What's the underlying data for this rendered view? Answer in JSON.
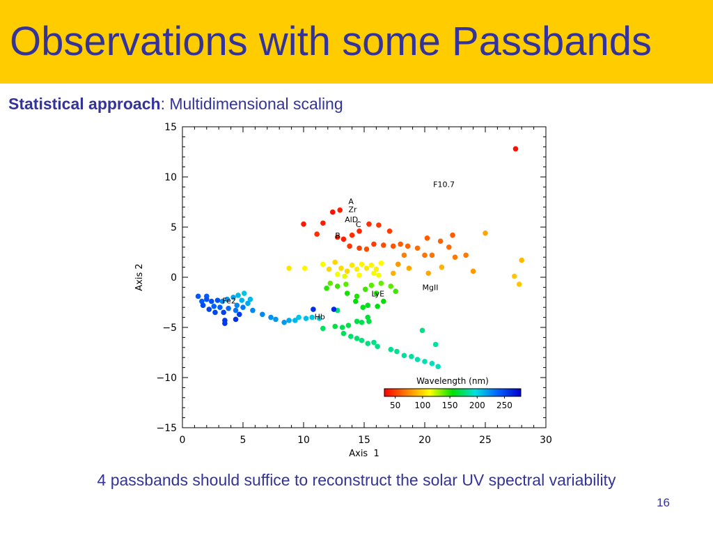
{
  "slide": {
    "title": "Observations with some Passbands",
    "subtitle_bold": "Statistical approach",
    "subtitle_rest": ": Multidimensional scaling",
    "footer": "4 passbands should suffice to reconstruct the solar UV spectral variability",
    "page_number": "16"
  },
  "colors": {
    "title_bar": "#ffcc00",
    "text": "#333399"
  },
  "chart_data": {
    "type": "scatter",
    "xlabel": "Axis  1",
    "ylabel": "Axis 2",
    "xlim": [
      0,
      30
    ],
    "ylim": [
      -15,
      15
    ],
    "xticks": [
      0,
      5,
      10,
      15,
      20,
      25,
      30
    ],
    "yticks": [
      -15,
      -10,
      -5,
      0,
      5,
      10,
      15
    ],
    "grid": false,
    "colorbar": {
      "label": "Wavelength (nm)",
      "ticks": [
        50,
        100,
        150,
        200,
        250
      ],
      "range": [
        30,
        280
      ],
      "colormap": [
        "#ff0000",
        "#ff8000",
        "#ffff00",
        "#00e000",
        "#00e0e0",
        "#0060ff",
        "#0000cc"
      ]
    },
    "annotations": [
      {
        "text": "F10.7",
        "x": 20.7,
        "y": 9.0
      },
      {
        "text": "A",
        "x": 13.7,
        "y": 7.3
      },
      {
        "text": "Zr",
        "x": 13.7,
        "y": 6.5
      },
      {
        "text": "AlD",
        "x": 13.4,
        "y": 5.5
      },
      {
        "text": "C",
        "x": 14.3,
        "y": 5.0
      },
      {
        "text": "B",
        "x": 12.6,
        "y": 3.9
      },
      {
        "text": "MgII",
        "x": 19.8,
        "y": -1.3
      },
      {
        "text": "LyE",
        "x": 15.6,
        "y": -1.9
      },
      {
        "text": "Hb",
        "x": 10.9,
        "y": -4.2
      },
      {
        "text": "Fe2",
        "x": 3.3,
        "y": -2.6
      }
    ],
    "points": [
      {
        "x": 27.5,
        "y": 12.8,
        "w": 35
      },
      {
        "x": 12.4,
        "y": 6.5,
        "w": 35
      },
      {
        "x": 13.0,
        "y": 6.7,
        "w": 40
      },
      {
        "x": 10.0,
        "y": 5.3,
        "w": 38
      },
      {
        "x": 11.6,
        "y": 5.4,
        "w": 40
      },
      {
        "x": 11.1,
        "y": 4.3,
        "w": 45
      },
      {
        "x": 12.8,
        "y": 4.0,
        "w": 42
      },
      {
        "x": 13.3,
        "y": 3.8,
        "w": 40
      },
      {
        "x": 14.0,
        "y": 4.2,
        "w": 45
      },
      {
        "x": 14.6,
        "y": 4.6,
        "w": 42
      },
      {
        "x": 15.4,
        "y": 5.3,
        "w": 45
      },
      {
        "x": 16.2,
        "y": 5.2,
        "w": 48
      },
      {
        "x": 17.1,
        "y": 4.6,
        "w": 50
      },
      {
        "x": 13.8,
        "y": 3.1,
        "w": 48
      },
      {
        "x": 14.6,
        "y": 2.9,
        "w": 50
      },
      {
        "x": 15.2,
        "y": 2.8,
        "w": 55
      },
      {
        "x": 15.8,
        "y": 3.3,
        "w": 50
      },
      {
        "x": 16.6,
        "y": 3.2,
        "w": 55
      },
      {
        "x": 17.4,
        "y": 3.1,
        "w": 58
      },
      {
        "x": 18.0,
        "y": 3.3,
        "w": 60
      },
      {
        "x": 18.6,
        "y": 3.1,
        "w": 62
      },
      {
        "x": 19.4,
        "y": 2.9,
        "w": 65
      },
      {
        "x": 20.2,
        "y": 3.9,
        "w": 60
      },
      {
        "x": 21.3,
        "y": 3.6,
        "w": 62
      },
      {
        "x": 22.3,
        "y": 4.2,
        "w": 60
      },
      {
        "x": 22.0,
        "y": 3.0,
        "w": 65
      },
      {
        "x": 22.5,
        "y": 2.0,
        "w": 70
      },
      {
        "x": 23.4,
        "y": 2.2,
        "w": 70
      },
      {
        "x": 20.0,
        "y": 2.2,
        "w": 68
      },
      {
        "x": 20.6,
        "y": 2.2,
        "w": 68
      },
      {
        "x": 18.3,
        "y": 2.2,
        "w": 72
      },
      {
        "x": 25.0,
        "y": 4.4,
        "w": 85
      },
      {
        "x": 28.0,
        "y": 1.7,
        "w": 90
      },
      {
        "x": 27.4,
        "y": 0.1,
        "w": 95
      },
      {
        "x": 27.8,
        "y": -0.7,
        "w": 95
      },
      {
        "x": 24.0,
        "y": 0.6,
        "w": 80
      },
      {
        "x": 21.4,
        "y": 1.0,
        "w": 88
      },
      {
        "x": 20.3,
        "y": 0.4,
        "w": 85
      },
      {
        "x": 18.7,
        "y": 0.9,
        "w": 85
      },
      {
        "x": 17.8,
        "y": 1.3,
        "w": 80
      },
      {
        "x": 17.4,
        "y": 0.4,
        "w": 88
      },
      {
        "x": 12.1,
        "y": 0.8,
        "w": 100
      },
      {
        "x": 12.6,
        "y": 1.5,
        "w": 100
      },
      {
        "x": 13.1,
        "y": 0.9,
        "w": 102
      },
      {
        "x": 13.6,
        "y": 0.6,
        "w": 100
      },
      {
        "x": 14.0,
        "y": 1.2,
        "w": 105
      },
      {
        "x": 14.4,
        "y": 0.8,
        "w": 108
      },
      {
        "x": 14.8,
        "y": 1.3,
        "w": 110
      },
      {
        "x": 15.2,
        "y": 0.9,
        "w": 105
      },
      {
        "x": 15.6,
        "y": 1.2,
        "w": 110
      },
      {
        "x": 16.0,
        "y": 0.8,
        "w": 108
      },
      {
        "x": 16.4,
        "y": 1.4,
        "w": 112
      },
      {
        "x": 15.8,
        "y": 0.4,
        "w": 115
      },
      {
        "x": 16.2,
        "y": 0.2,
        "w": 115
      },
      {
        "x": 14.6,
        "y": 0.2,
        "w": 112
      },
      {
        "x": 13.4,
        "y": 0.1,
        "w": 118
      },
      {
        "x": 12.8,
        "y": 0.3,
        "w": 115
      },
      {
        "x": 10.1,
        "y": 0.9,
        "w": 110
      },
      {
        "x": 8.8,
        "y": 0.9,
        "w": 105
      },
      {
        "x": 11.6,
        "y": 1.3,
        "w": 115
      },
      {
        "x": 12.2,
        "y": -0.6,
        "w": 140
      },
      {
        "x": 12.8,
        "y": -0.9,
        "w": 145
      },
      {
        "x": 13.5,
        "y": -0.7,
        "w": 140
      },
      {
        "x": 11.9,
        "y": -1.1,
        "w": 148
      },
      {
        "x": 15.1,
        "y": -1.2,
        "w": 145
      },
      {
        "x": 15.6,
        "y": -0.8,
        "w": 140
      },
      {
        "x": 16.4,
        "y": -0.6,
        "w": 138
      },
      {
        "x": 17.2,
        "y": -0.9,
        "w": 140
      },
      {
        "x": 17.6,
        "y": -1.4,
        "w": 145
      },
      {
        "x": 16.0,
        "y": -1.6,
        "w": 150
      },
      {
        "x": 16.6,
        "y": -2.4,
        "w": 155
      },
      {
        "x": 16.1,
        "y": -2.9,
        "w": 158
      },
      {
        "x": 14.3,
        "y": -2.4,
        "w": 155
      },
      {
        "x": 15.3,
        "y": -2.8,
        "w": 160
      },
      {
        "x": 13.6,
        "y": -1.6,
        "w": 152
      },
      {
        "x": 14.4,
        "y": -1.9,
        "w": 150
      },
      {
        "x": 14.9,
        "y": -3.0,
        "w": 160
      },
      {
        "x": 15.3,
        "y": -4.0,
        "w": 165
      },
      {
        "x": 15.4,
        "y": -4.4,
        "w": 168
      },
      {
        "x": 14.8,
        "y": -4.5,
        "w": 170
      },
      {
        "x": 14.4,
        "y": -4.4,
        "w": 168
      },
      {
        "x": 13.7,
        "y": -4.8,
        "w": 168
      },
      {
        "x": 13.2,
        "y": -5.0,
        "w": 170
      },
      {
        "x": 12.6,
        "y": -4.9,
        "w": 168
      },
      {
        "x": 11.6,
        "y": -5.1,
        "w": 172
      },
      {
        "x": 12.8,
        "y": -3.3,
        "w": 175
      },
      {
        "x": 13.3,
        "y": -5.6,
        "w": 172
      },
      {
        "x": 13.9,
        "y": -5.9,
        "w": 175
      },
      {
        "x": 14.4,
        "y": -6.1,
        "w": 175
      },
      {
        "x": 14.8,
        "y": -6.3,
        "w": 178
      },
      {
        "x": 15.3,
        "y": -6.6,
        "w": 178
      },
      {
        "x": 15.8,
        "y": -6.5,
        "w": 180
      },
      {
        "x": 16.1,
        "y": -6.9,
        "w": 180
      },
      {
        "x": 17.2,
        "y": -7.2,
        "w": 182
      },
      {
        "x": 17.7,
        "y": -7.4,
        "w": 182
      },
      {
        "x": 18.3,
        "y": -7.8,
        "w": 185
      },
      {
        "x": 18.9,
        "y": -7.9,
        "w": 185
      },
      {
        "x": 19.4,
        "y": -8.2,
        "w": 188
      },
      {
        "x": 20.0,
        "y": -8.4,
        "w": 188
      },
      {
        "x": 20.6,
        "y": -8.6,
        "w": 190
      },
      {
        "x": 21.1,
        "y": -8.9,
        "w": 190
      },
      {
        "x": 20.9,
        "y": -6.7,
        "w": 185
      },
      {
        "x": 19.8,
        "y": -5.3,
        "w": 180
      },
      {
        "x": 11.3,
        "y": -4.1,
        "w": 200
      },
      {
        "x": 10.7,
        "y": -4.0,
        "w": 205
      },
      {
        "x": 10.2,
        "y": -4.1,
        "w": 208
      },
      {
        "x": 9.6,
        "y": -4.0,
        "w": 205
      },
      {
        "x": 9.3,
        "y": -4.3,
        "w": 210
      },
      {
        "x": 8.8,
        "y": -4.3,
        "w": 215
      },
      {
        "x": 8.4,
        "y": -4.5,
        "w": 220
      },
      {
        "x": 7.7,
        "y": -4.2,
        "w": 220
      },
      {
        "x": 7.3,
        "y": -4.0,
        "w": 222
      },
      {
        "x": 6.6,
        "y": -3.7,
        "w": 225
      },
      {
        "x": 5.8,
        "y": -3.3,
        "w": 225
      },
      {
        "x": 5.4,
        "y": -2.6,
        "w": 215
      },
      {
        "x": 5.6,
        "y": -2.2,
        "w": 210
      },
      {
        "x": 5.1,
        "y": -1.6,
        "w": 205
      },
      {
        "x": 4.6,
        "y": -1.8,
        "w": 210
      },
      {
        "x": 4.2,
        "y": -2.0,
        "w": 215
      },
      {
        "x": 3.7,
        "y": -2.2,
        "w": 220
      },
      {
        "x": 3.3,
        "y": -2.4,
        "w": 222
      },
      {
        "x": 4.9,
        "y": -2.3,
        "w": 212
      },
      {
        "x": 4.5,
        "y": -2.8,
        "w": 225
      },
      {
        "x": 5.0,
        "y": -3.0,
        "w": 230
      },
      {
        "x": 4.4,
        "y": -3.3,
        "w": 232
      },
      {
        "x": 3.8,
        "y": -3.1,
        "w": 235
      },
      {
        "x": 3.1,
        "y": -3.0,
        "w": 238
      },
      {
        "x": 2.6,
        "y": -2.9,
        "w": 238
      },
      {
        "x": 1.6,
        "y": -2.4,
        "w": 240
      },
      {
        "x": 1.3,
        "y": -1.9,
        "w": 242
      },
      {
        "x": 2.0,
        "y": -1.9,
        "w": 240
      },
      {
        "x": 2.4,
        "y": -2.4,
        "w": 245
      },
      {
        "x": 2.9,
        "y": -2.3,
        "w": 245
      },
      {
        "x": 1.7,
        "y": -2.8,
        "w": 248
      },
      {
        "x": 2.2,
        "y": -3.2,
        "w": 250
      },
      {
        "x": 2.7,
        "y": -3.5,
        "w": 250
      },
      {
        "x": 3.4,
        "y": -3.5,
        "w": 252
      },
      {
        "x": 3.5,
        "y": -4.3,
        "w": 255
      },
      {
        "x": 3.5,
        "y": -4.6,
        "w": 255
      },
      {
        "x": 4.7,
        "y": -3.7,
        "w": 255
      },
      {
        "x": 4.4,
        "y": -4.2,
        "w": 258
      },
      {
        "x": 10.8,
        "y": -3.2,
        "w": 260
      },
      {
        "x": 12.5,
        "y": -3.2,
        "w": 262
      },
      {
        "x": 2.0,
        "y": -2.2,
        "w": 245
      }
    ]
  }
}
